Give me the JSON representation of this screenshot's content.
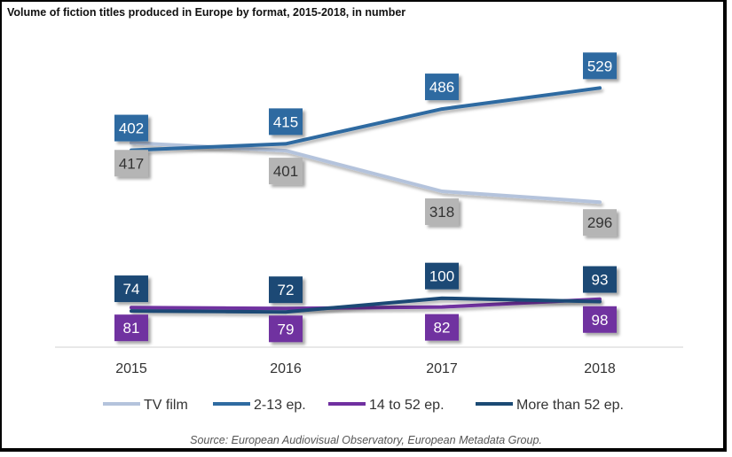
{
  "chart_data": {
    "type": "line",
    "title": "Volume of fiction titles produced in Europe by format, 2015-2018, in number",
    "categories": [
      "2015",
      "2016",
      "2017",
      "2018"
    ],
    "series": [
      {
        "name": "TV film",
        "values": [
          417,
          401,
          318,
          296
        ],
        "color": "#b4c3dc",
        "label_bg": "#b5b5b5",
        "label_fg": "#333333"
      },
      {
        "name": "2-13 ep.",
        "values": [
          402,
          415,
          486,
          529
        ],
        "color": "#2f6ba1",
        "label_bg": "#2f6ba1",
        "label_fg": "#ffffff"
      },
      {
        "name": "14 to 52 ep.",
        "values": [
          81,
          79,
          82,
          98
        ],
        "color": "#7030a0",
        "label_bg": "#7030a0",
        "label_fg": "#ffffff"
      },
      {
        "name": "More than 52 ep.",
        "values": [
          74,
          72,
          100,
          93
        ],
        "color": "#1b4a74",
        "label_bg": "#1b4a74",
        "label_fg": "#ffffff"
      }
    ],
    "ylim": [
      0,
      600
    ],
    "grid": false,
    "legend": "bottom",
    "source": "Source: European Audiovisual Observatory, European Metadata Group."
  }
}
